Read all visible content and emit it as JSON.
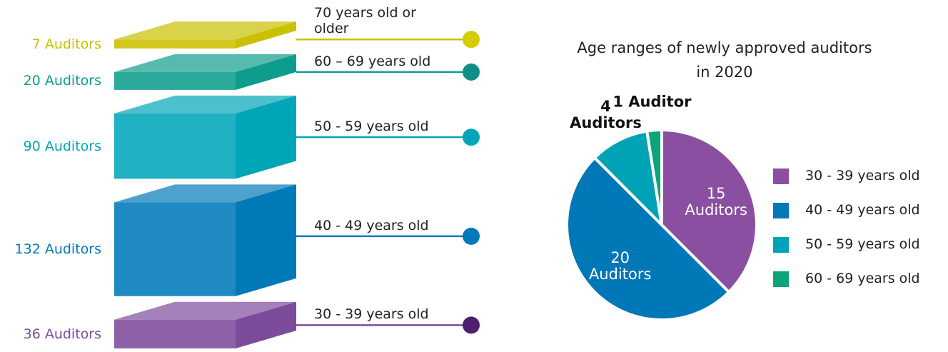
{
  "chart_data": [
    {
      "type": "blocks",
      "categories": [
        "70 years old or older",
        "60 – 69 years old",
        "50 - 59 years old",
        "40 - 49 years old",
        "30 - 39 years old"
      ],
      "values": [
        7,
        20,
        90,
        132,
        36
      ],
      "value_labels": [
        "7 Auditors",
        "20 Auditors",
        "90 Auditors",
        "132 Auditors",
        "36 Auditors"
      ],
      "colors": [
        "#c9c000",
        "#0e9d8c",
        "#00a6b8",
        "#0079b8",
        "#7d4b9c"
      ],
      "dot_colors": [
        "#d6cc00",
        "#0e8f86",
        "#00a6b8",
        "#0079b8",
        "#4e1f6e"
      ]
    },
    {
      "type": "pie",
      "title": "Age ranges of newly approved auditors in 2020",
      "categories": [
        "30 - 39 years old",
        "40 - 49 years old",
        "50 - 59 years old",
        "60 - 69 years old"
      ],
      "values": [
        15,
        20,
        4,
        1
      ],
      "value_labels": [
        "15 Auditors",
        "20 Auditors",
        "4 Auditors",
        "1 Auditor"
      ],
      "colors": [
        "#8a4fa0",
        "#0077b6",
        "#00a3b5",
        "#0fa37a"
      ]
    }
  ]
}
